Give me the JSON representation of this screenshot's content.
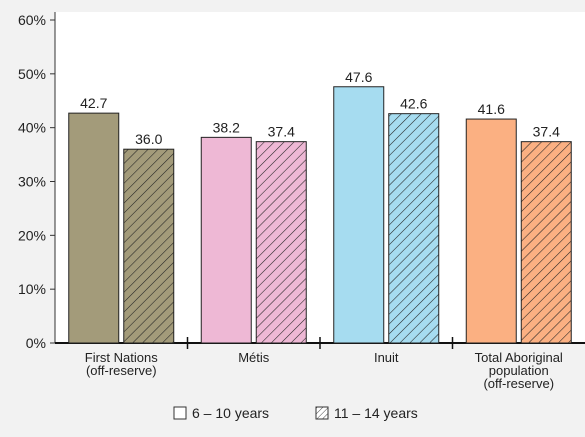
{
  "chart_data": {
    "type": "bar",
    "title": "",
    "xlabel": "",
    "ylabel": "",
    "ylim": [
      0,
      60
    ],
    "yticks": [
      "0%",
      "10%",
      "20%",
      "30%",
      "40%",
      "50%",
      "60%"
    ],
    "grid": false,
    "legend_position": "bottom",
    "categories": [
      [
        "First Nations",
        "(off-reserve)"
      ],
      [
        "Métis"
      ],
      [
        "Inuit"
      ],
      [
        "Total Aboriginal",
        "population",
        "(off-reserve)"
      ]
    ],
    "series": [
      {
        "name": "6 – 10 years",
        "values": [
          42.7,
          38.2,
          47.6,
          41.6
        ],
        "labels": [
          "42.7",
          "38.2",
          "47.6",
          "41.6"
        ],
        "pattern": "solid"
      },
      {
        "name": "11 – 14 years",
        "values": [
          36.0,
          37.4,
          42.6,
          37.4
        ],
        "labels": [
          "36.0",
          "37.4",
          "42.6",
          "37.4"
        ],
        "pattern": "hatched"
      }
    ],
    "colors": [
      "#a39b7a",
      "#eeb8d5",
      "#a6dcf0",
      "#fbb082"
    ]
  }
}
